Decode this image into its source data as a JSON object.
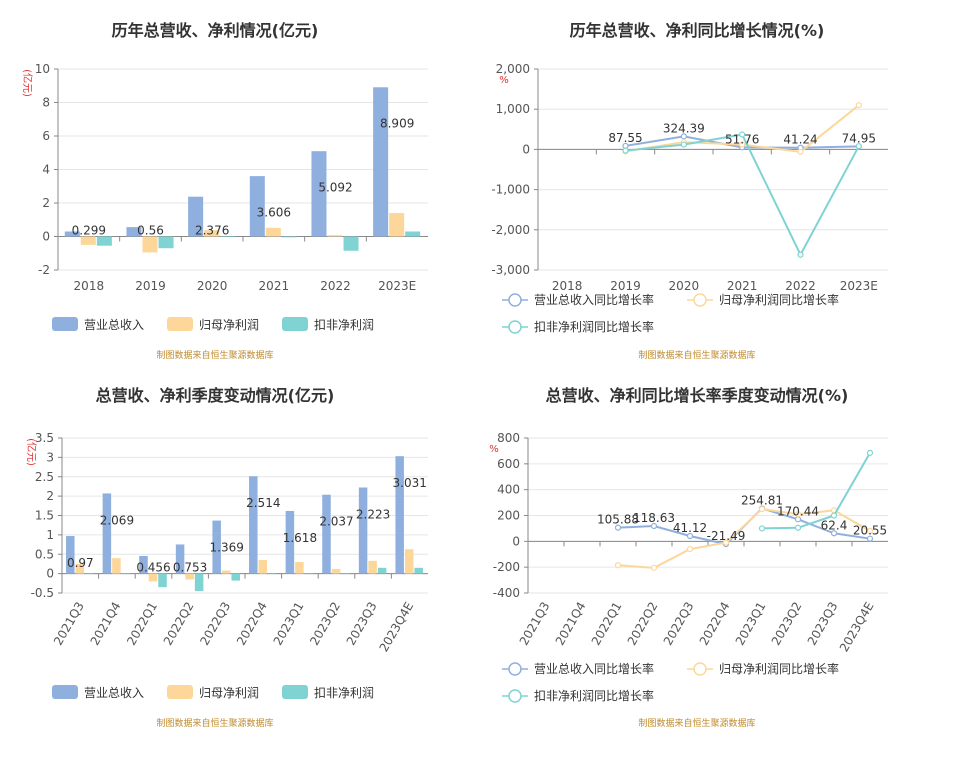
{
  "colors": {
    "revenue": "#8fb0de",
    "net_profit": "#fdd79a",
    "deducted_profit": "#7fd3d2",
    "axis": "#888888",
    "grid": "#e6e6e6"
  },
  "chart_data": [
    {
      "type": "bar",
      "title": "历年总营收、净利情况(亿元)",
      "unit": "(亿元)",
      "categories": [
        "2018",
        "2019",
        "2020",
        "2021",
        "2022",
        "2023E"
      ],
      "series": [
        {
          "name": "营业总收入",
          "values": [
            0.299,
            0.56,
            2.376,
            3.606,
            5.092,
            8.909
          ]
        },
        {
          "name": "归母净利润",
          "values": [
            -0.5,
            -0.95,
            0.38,
            0.52,
            0.08,
            1.4
          ]
        },
        {
          "name": "扣非净利润",
          "values": [
            -0.55,
            -0.7,
            0.02,
            -0.05,
            -0.85,
            0.3
          ]
        }
      ],
      "data_labels": [
        "0.299",
        "0.56",
        "2.376",
        "3.606",
        "5.092",
        "8.909"
      ],
      "ylim": [
        -2,
        10
      ],
      "yticks": [
        "-2",
        "0",
        "2",
        "4",
        "6",
        "8",
        "10"
      ],
      "legend_position": "bottom-left",
      "source": "制图数据来自恒生聚源数据库"
    },
    {
      "type": "line",
      "title": "历年总营收、净利同比增长情况(%)",
      "unit": "%",
      "categories": [
        "2018",
        "2019",
        "2020",
        "2021",
        "2022",
        "2023E"
      ],
      "series": [
        {
          "name": "营业总收入同比增长率",
          "values": [
            null,
            87.55,
            324.39,
            51.76,
            41.24,
            74.95
          ]
        },
        {
          "name": "归母净利润同比增长率",
          "values": [
            null,
            -50,
            180,
            120,
            -60,
            1100
          ]
        },
        {
          "name": "扣非净利润同比增长率",
          "values": [
            null,
            -30,
            120,
            370,
            -2620,
            80
          ]
        }
      ],
      "data_labels": [
        "",
        "87.55",
        "324.39",
        "51.76",
        "41.24",
        "74.95"
      ],
      "ylim": [
        -3000,
        2000
      ],
      "yticks": [
        "-3,000",
        "-2,000",
        "-1,000",
        "0",
        "1,000",
        "2,000"
      ],
      "legend_position": "bottom-left",
      "source": "制图数据来自恒生聚源数据库"
    },
    {
      "type": "bar",
      "title": "总营收、净利季度变动情况(亿元)",
      "unit": "(亿元)",
      "categories": [
        "2021Q3",
        "2021Q4",
        "2022Q1",
        "2022Q2",
        "2022Q3",
        "2022Q4",
        "2023Q1",
        "2023Q2",
        "2023Q3",
        "2023Q4E"
      ],
      "series": [
        {
          "name": "营业总收入",
          "values": [
            0.97,
            2.069,
            0.456,
            0.753,
            1.369,
            2.514,
            1.618,
            2.037,
            2.223,
            3.031
          ]
        },
        {
          "name": "归母净利润",
          "values": [
            0.25,
            0.4,
            -0.2,
            -0.15,
            0.08,
            0.35,
            0.3,
            0.12,
            0.33,
            0.63
          ]
        },
        {
          "name": "扣非净利润",
          "values": [
            0.0,
            0.0,
            -0.35,
            -0.45,
            -0.18,
            0.0,
            0.0,
            0.0,
            0.15,
            0.15
          ]
        }
      ],
      "data_labels": [
        "0.97",
        "2.069",
        "0.456",
        "0.753",
        "1.369",
        "2.514",
        "1.618",
        "2.037",
        "2.223",
        "3.031"
      ],
      "ylim": [
        -0.5,
        3.5
      ],
      "yticks": [
        "-0.5",
        "0",
        "0.5",
        "1",
        "1.5",
        "2",
        "2.5",
        "3",
        "3.5"
      ],
      "legend_position": "bottom-left",
      "source": "制图数据来自恒生聚源数据库"
    },
    {
      "type": "line",
      "title": "总营收、净利同比增长率季度变动情况(%)",
      "unit": "%",
      "categories": [
        "2021Q3",
        "2021Q4",
        "2022Q1",
        "2022Q2",
        "2022Q3",
        "2022Q4",
        "2023Q1",
        "2023Q2",
        "2023Q3",
        "2023Q4E"
      ],
      "series": [
        {
          "name": "营业总收入同比增长率",
          "values": [
            null,
            null,
            105.88,
            118.63,
            41.12,
            -21.49,
            254.81,
            170.44,
            62.4,
            20.55
          ]
        },
        {
          "name": "归母净利润同比增长率",
          "values": [
            null,
            null,
            -185,
            -205,
            -60,
            -10,
            250,
            210,
            240,
            80
          ]
        },
        {
          "name": "扣非净利润同比增长率",
          "values": [
            null,
            null,
            null,
            null,
            null,
            null,
            100,
            105,
            200,
            685
          ]
        }
      ],
      "data_labels": [
        "",
        "",
        "105.88",
        "118.63",
        "41.12",
        "-21.49",
        "254.81",
        "170.44",
        "62.4",
        "20.55"
      ],
      "ylim": [
        -400,
        800
      ],
      "yticks": [
        "-400",
        "-200",
        "0",
        "200",
        "400",
        "600",
        "800"
      ],
      "legend_position": "bottom-left",
      "source": "制图数据来自恒生聚源数据库"
    }
  ]
}
